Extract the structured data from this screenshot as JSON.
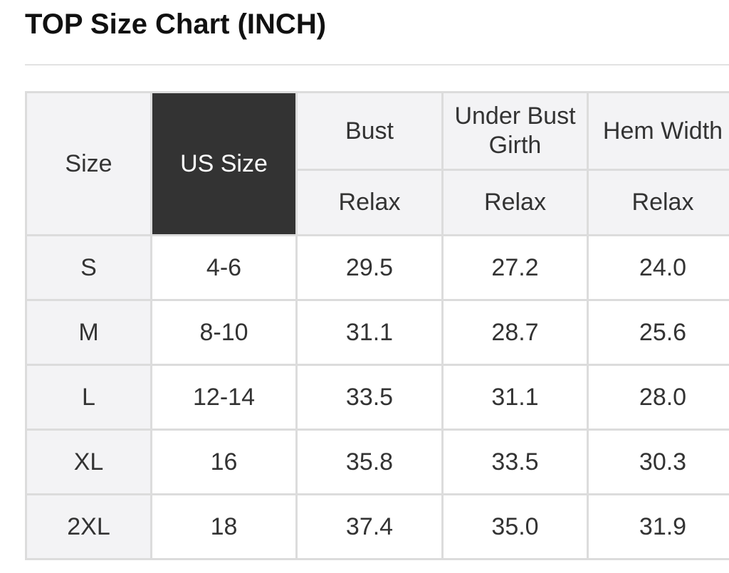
{
  "title": "TOP Size Chart (INCH)",
  "table": {
    "header": [
      "Size",
      "US Size",
      "Bust",
      "Under Bust Girth",
      "Hem Width"
    ],
    "subheader": [
      "Relax",
      "Relax",
      "Relax"
    ],
    "rows": [
      [
        "S",
        "4-6",
        "29.5",
        "27.2",
        "24.0"
      ],
      [
        "M",
        "8-10",
        "31.1",
        "28.7",
        "25.6"
      ],
      [
        "L",
        "12-14",
        "33.5",
        "31.1",
        "28.0"
      ],
      [
        "XL",
        "16",
        "35.8",
        "33.5",
        "30.3"
      ],
      [
        "2XL",
        "18",
        "37.4",
        "35.0",
        "31.9"
      ]
    ]
  }
}
